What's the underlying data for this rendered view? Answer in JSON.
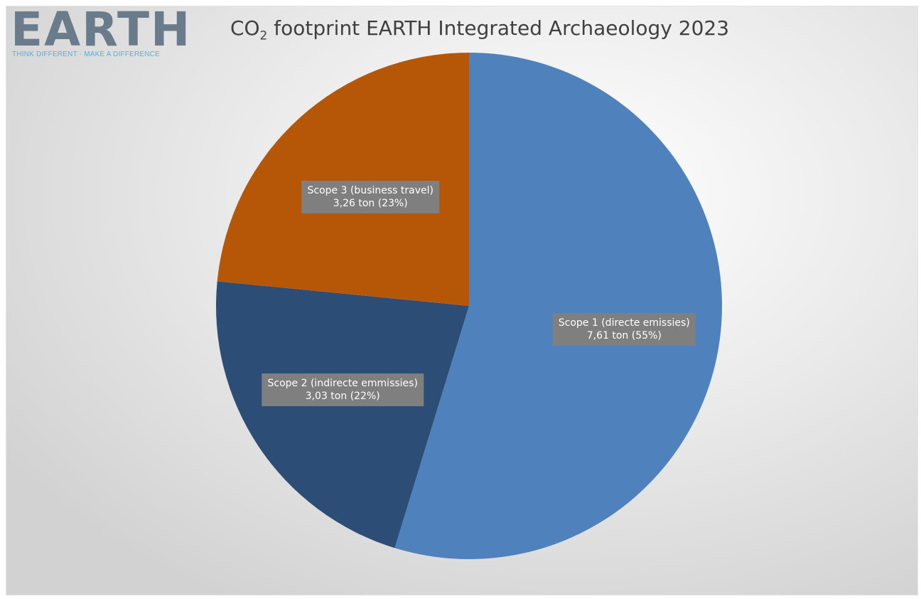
{
  "logo": {
    "word": "EARTH",
    "tagline": "THINK DIFFERENT · MAKE A DIFFERENCE",
    "colors": {
      "word": "#6a7b8b",
      "tagline": "#5aaed9"
    }
  },
  "chart_data": {
    "type": "pie",
    "title_prefix": "CO",
    "title_subscript": "2",
    "title_rest": " footprint EARTH Integrated Archaeology 2023",
    "unit": "ton",
    "start_angle_deg": 0,
    "direction": "clockwise",
    "slices": [
      {
        "name": "Scope 1 (directe emissies)",
        "value": 7.61,
        "percent": 55,
        "value_label": "7,61 ton (55%)",
        "color": "#4f81bd"
      },
      {
        "name": "Scope 2 (indirecte emmissies)",
        "value": 3.03,
        "percent": 22,
        "value_label": "3,03 ton (22%)",
        "color": "#2c4d75"
      },
      {
        "name": "Scope 3 (business travel)",
        "value": 3.26,
        "percent": 23,
        "value_label": "3,26 ton  (23%)",
        "color": "#b65708"
      }
    ],
    "label_style": {
      "background": "#7f7f7f",
      "text": "#ffffff"
    }
  }
}
